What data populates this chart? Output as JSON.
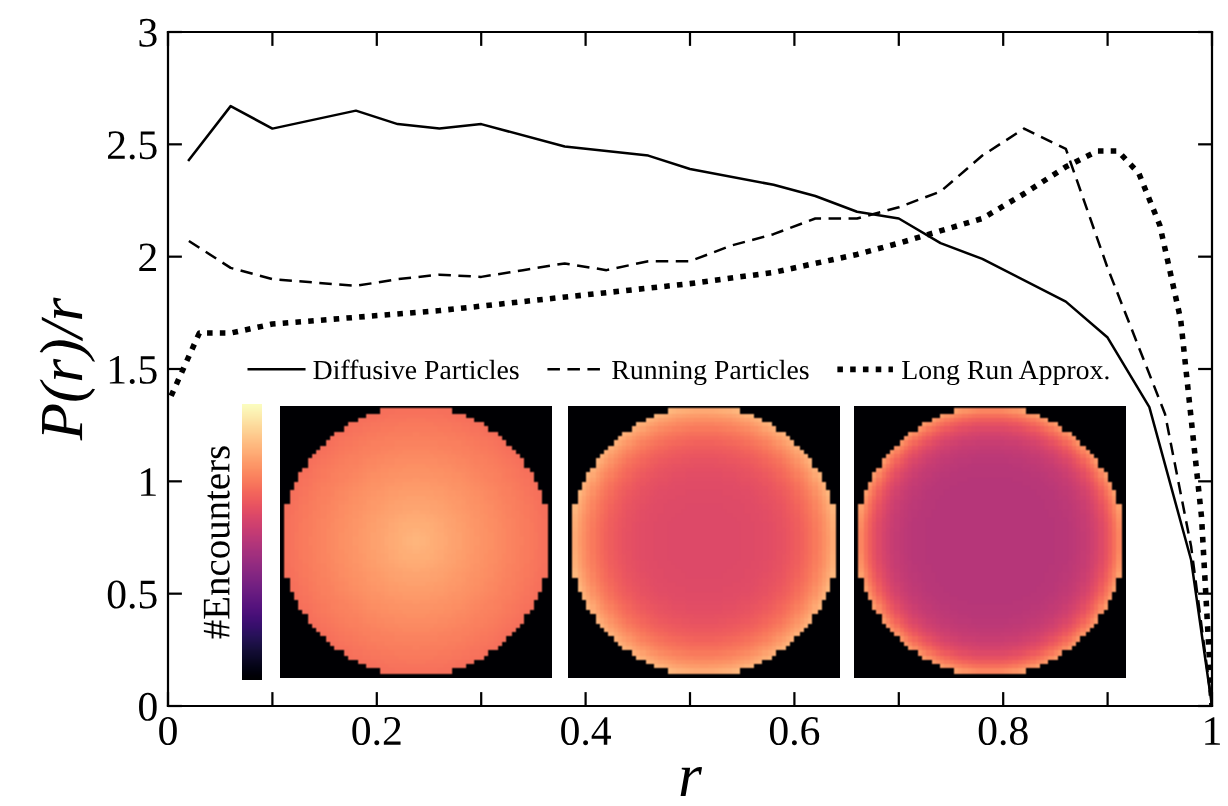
{
  "chart_data": {
    "type": "line",
    "xlabel": "r",
    "ylabel": "P(r)/r",
    "xlim": [
      0,
      1
    ],
    "ylim": [
      0,
      3
    ],
    "xticks": [
      0,
      {
        "value": 0.1,
        "label": null
      },
      0.2,
      {
        "value": 0.3,
        "label": null
      },
      0.4,
      {
        "value": 0.5,
        "label": null
      },
      0.6,
      {
        "value": 0.7,
        "label": null
      },
      0.8,
      {
        "value": 0.9,
        "label": null
      },
      1
    ],
    "yticks": [
      0,
      0.5,
      1,
      1.5,
      2,
      2.5,
      3
    ],
    "grid": false,
    "legend": "center",
    "marker": "none",
    "annotations": [
      "#Encounters"
    ],
    "series": [
      {
        "name": "Diffusive Particles",
        "color": "#000000",
        "line_style": "solid",
        "x": [
          0.02,
          0.06,
          0.1,
          0.18,
          0.22,
          0.26,
          0.3,
          0.38,
          0.42,
          0.46,
          0.5,
          0.58,
          0.62,
          0.66,
          0.7,
          0.74,
          0.78,
          0.86,
          0.9,
          0.94,
          0.98,
          1.0
        ],
        "values": [
          2.43,
          2.67,
          2.57,
          2.65,
          2.59,
          2.57,
          2.59,
          2.49,
          2.47,
          2.45,
          2.39,
          2.32,
          2.27,
          2.2,
          2.17,
          2.06,
          1.99,
          1.8,
          1.64,
          1.33,
          0.65,
          0
        ]
      },
      {
        "name": "Running Particles",
        "color": "#000000",
        "line_style": "dashed",
        "x": [
          0.02,
          0.06,
          0.1,
          0.18,
          0.22,
          0.26,
          0.3,
          0.34,
          0.38,
          0.42,
          0.46,
          0.5,
          0.54,
          0.58,
          0.62,
          0.66,
          0.7,
          0.74,
          0.78,
          0.82,
          0.86,
          0.9,
          0.955,
          0.98,
          1.0
        ],
        "values": [
          2.07,
          1.95,
          1.9,
          1.87,
          1.9,
          1.92,
          1.91,
          1.94,
          1.97,
          1.94,
          1.98,
          1.98,
          2.05,
          2.1,
          2.17,
          2.17,
          2.22,
          2.29,
          2.45,
          2.57,
          2.48,
          1.95,
          1.3,
          0.71,
          0
        ]
      },
      {
        "name": "Long Run Approx.",
        "color": "#000000",
        "line_style": "dotted",
        "x": [
          0.003,
          0.03,
          0.06,
          0.1,
          0.18,
          0.26,
          0.34,
          0.42,
          0.5,
          0.58,
          0.66,
          0.7,
          0.78,
          0.82,
          0.86,
          0.89,
          0.91,
          0.93,
          0.95,
          0.97,
          0.99,
          1.0
        ],
        "values": [
          1.38,
          1.66,
          1.66,
          1.7,
          1.73,
          1.76,
          1.8,
          1.84,
          1.88,
          1.93,
          2.01,
          2.06,
          2.17,
          2.28,
          2.4,
          2.47,
          2.47,
          2.37,
          2.14,
          1.72,
          0.84,
          0
        ]
      }
    ]
  }
}
